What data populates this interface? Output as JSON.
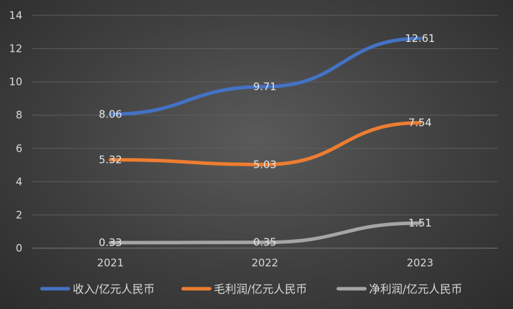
{
  "chart_data": {
    "type": "line",
    "title": "",
    "xlabel": "",
    "ylabel": "",
    "categories": [
      "2021",
      "2022",
      "2023"
    ],
    "ylim": [
      0,
      14
    ],
    "yticks": [
      0,
      2,
      4,
      6,
      8,
      10,
      12,
      14
    ],
    "grid": true,
    "legend_position": "bottom",
    "series": [
      {
        "name": "收入/亿元人民币",
        "values": [
          8.06,
          9.71,
          12.61
        ],
        "labels": [
          "8.06",
          "9.71",
          "12.61"
        ],
        "color": "#4472C4"
      },
      {
        "name": "毛利润/亿元人民币",
        "values": [
          5.32,
          5.03,
          7.54
        ],
        "labels": [
          "5.32",
          "5.03",
          "7.54"
        ],
        "color": "#ED7D31"
      },
      {
        "name": "净利润/亿元人民币",
        "values": [
          0.33,
          0.35,
          1.51
        ],
        "labels": [
          "0.33",
          "0.35",
          "1.51"
        ],
        "color": "#A5A5A5"
      }
    ]
  }
}
